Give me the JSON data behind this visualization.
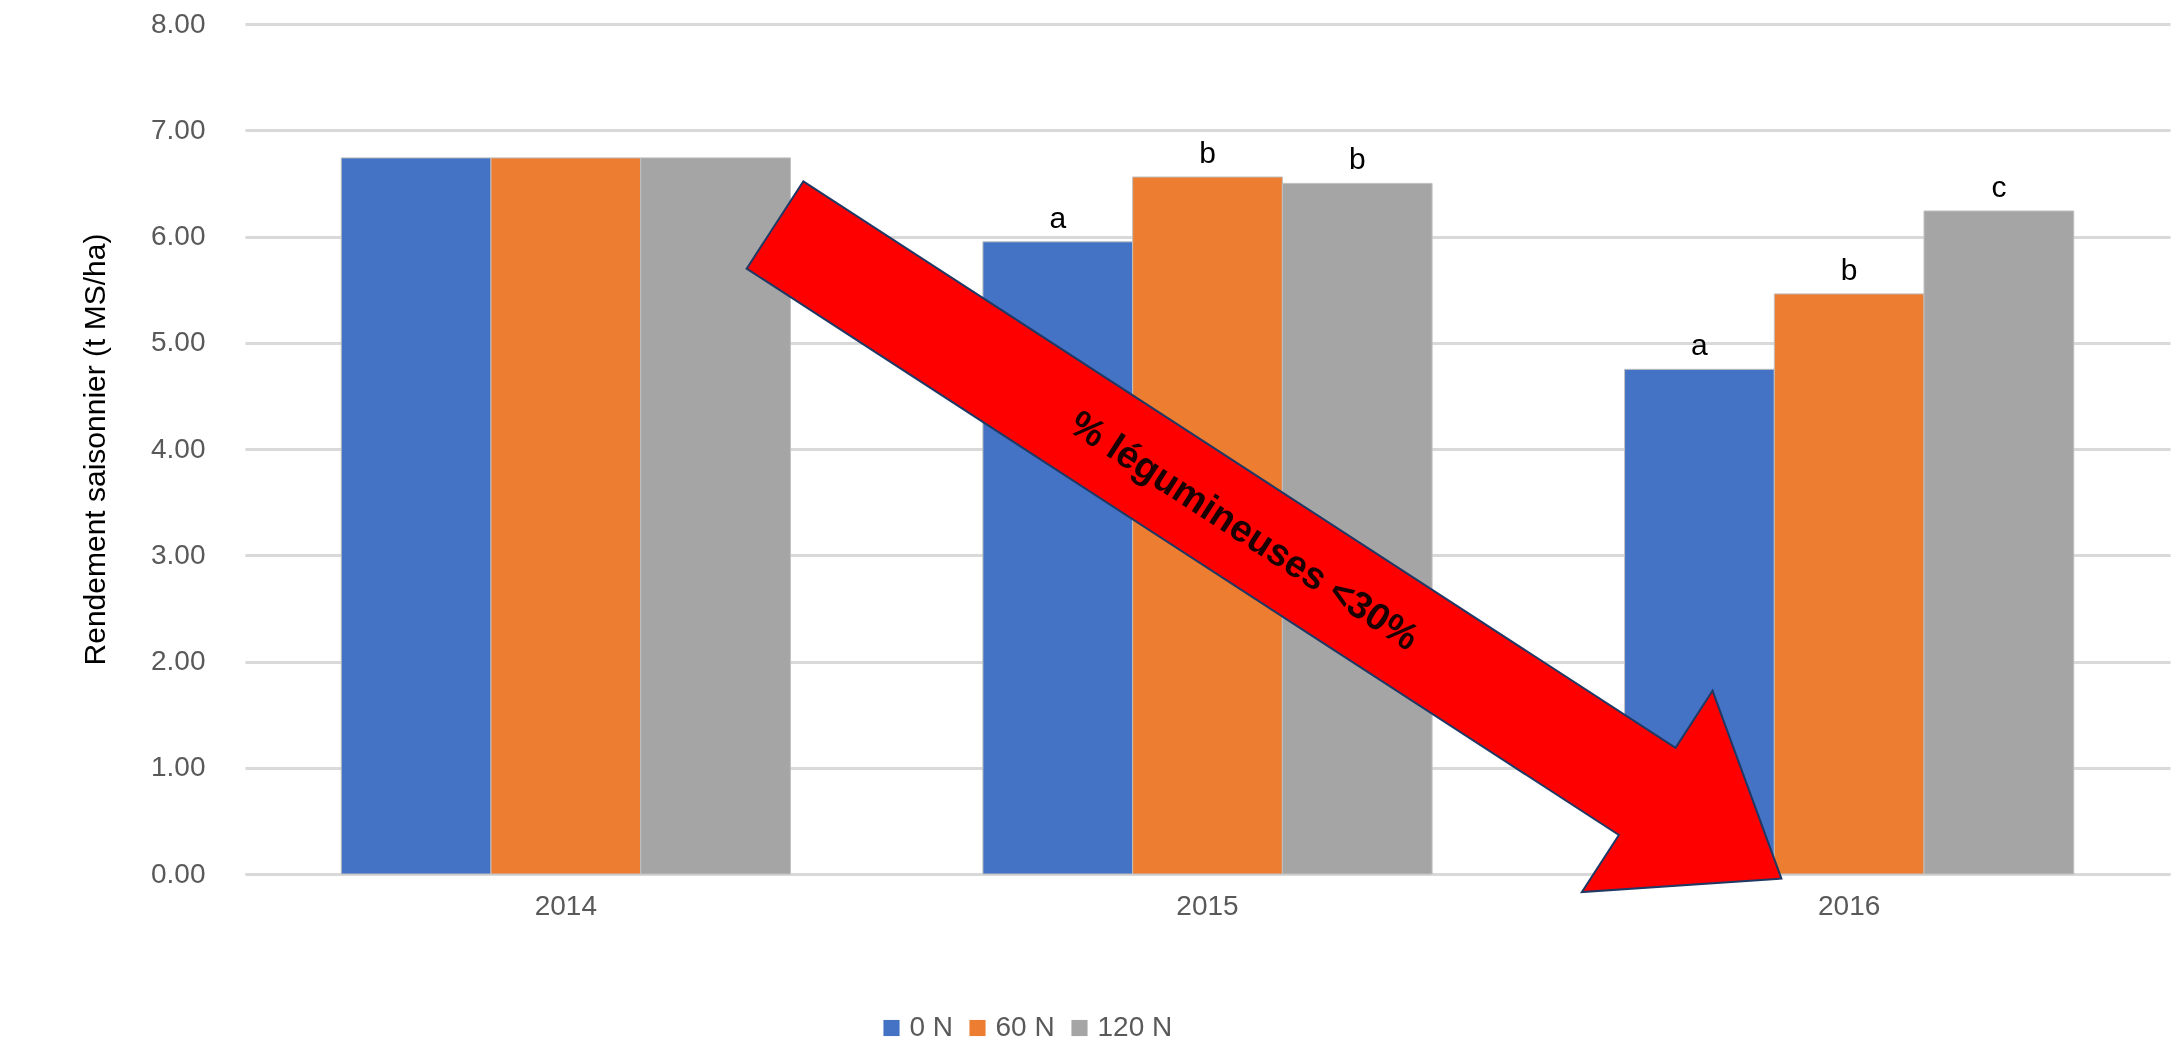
{
  "chart_data": {
    "type": "bar",
    "ylabel": "Rendement saisonnier (t MS/ha)",
    "categories": [
      "2014",
      "2015",
      "2016"
    ],
    "series": [
      {
        "name": "0 N",
        "color": "#4472c4",
        "values": [
          6.74,
          5.95,
          4.75
        ],
        "value_labels": [
          null,
          "a",
          "a"
        ]
      },
      {
        "name": "60 N",
        "color": "#ed7d31",
        "values": [
          6.74,
          6.56,
          5.46
        ],
        "value_labels": [
          null,
          "b",
          "b"
        ]
      },
      {
        "name": "120 N",
        "color": "#a5a5a5",
        "values": [
          6.74,
          6.5,
          6.24
        ],
        "value_labels": [
          null,
          "b",
          "c"
        ]
      }
    ],
    "ylim": [
      0,
      8
    ],
    "yticks": [
      {
        "value": 0,
        "label": "0.00"
      },
      {
        "value": 1,
        "label": "1.00"
      },
      {
        "value": 2,
        "label": "2.00"
      },
      {
        "value": 3,
        "label": "3.00"
      },
      {
        "value": 4,
        "label": "4.00"
      },
      {
        "value": 5,
        "label": "5.00"
      },
      {
        "value": 6,
        "label": "6.00"
      },
      {
        "value": 7,
        "label": "7.00"
      },
      {
        "value": 8,
        "label": "8.00"
      }
    ],
    "grid": "y",
    "legend": "bottom",
    "annotations": [
      "% légumineuses <30%"
    ]
  }
}
